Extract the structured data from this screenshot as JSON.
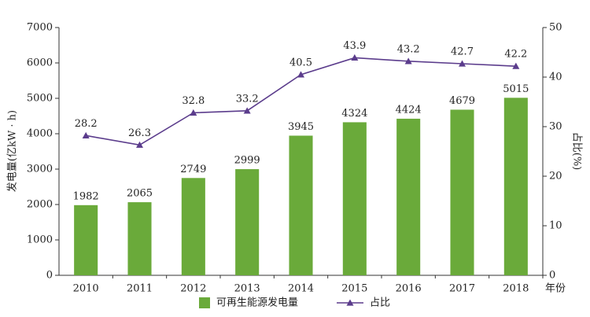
{
  "chart_data": {
    "type": "bar",
    "categories": [
      "2010",
      "2011",
      "2012",
      "2013",
      "2014",
      "2015",
      "2016",
      "2017",
      "2018"
    ],
    "x_label": "年份",
    "y_label": "发电量(亿kW · h)",
    "y2_label": "占比(%)",
    "series": [
      {
        "name": "可再生能源发电量",
        "type": "bar",
        "color": "#6aaa3a",
        "values": [
          1982,
          2065,
          2749,
          2999,
          3945,
          4324,
          4424,
          4679,
          5015
        ]
      },
      {
        "name": "占比",
        "type": "line",
        "axis": "y2",
        "color": "#5b3c8c",
        "values": [
          28.2,
          26.3,
          32.8,
          33.2,
          40.5,
          43.9,
          43.2,
          42.7,
          42.2
        ]
      }
    ],
    "ylim": [
      0,
      7000
    ],
    "yticks": [
      0,
      1000,
      2000,
      3000,
      4000,
      5000,
      6000,
      7000
    ],
    "y2lim": [
      0,
      50
    ],
    "y2ticks": [
      0,
      10,
      20,
      30,
      40,
      50
    ],
    "legend": "bottom"
  }
}
